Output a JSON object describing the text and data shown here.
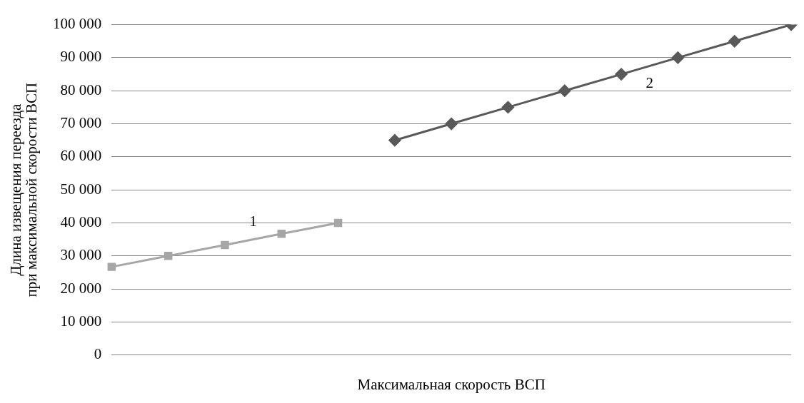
{
  "chart_data": {
    "type": "line",
    "xlabel": "Максимальная скорость ВСП",
    "ylabel": "Длина извещения переезда\nпри максимальной скорости ВСП",
    "categories": [
      null,
      null,
      null,
      null,
      null,
      null,
      null,
      null,
      null,
      null,
      null,
      null,
      null
    ],
    "series": [
      {
        "name": "1",
        "color": "#a6a6a6",
        "marker": "square",
        "values": [
          26700,
          30000,
          33300,
          36700,
          40000,
          null,
          null,
          null,
          null,
          null,
          null,
          null,
          null
        ]
      },
      {
        "name": "2",
        "color": "#595959",
        "marker": "diamond",
        "values": [
          null,
          null,
          null,
          null,
          null,
          65000,
          70000,
          75000,
          80000,
          85000,
          90000,
          95000,
          100000
        ]
      }
    ],
    "ylim": [
      0,
      100000
    ],
    "yticks": [
      {
        "value": 0,
        "label": "0"
      },
      {
        "value": 10000,
        "label": "10 000"
      },
      {
        "value": 20000,
        "label": "20 000"
      },
      {
        "value": 30000,
        "label": "30 000"
      },
      {
        "value": 40000,
        "label": "40 000"
      },
      {
        "value": 50000,
        "label": "50 000"
      },
      {
        "value": 60000,
        "label": "60 000"
      },
      {
        "value": 70000,
        "label": "70 000"
      },
      {
        "value": 80000,
        "label": "80 000"
      },
      {
        "value": 90000,
        "label": "90 000"
      },
      {
        "value": 100000,
        "label": "100 000"
      }
    ],
    "grid": "y",
    "legend": false,
    "tick_labels": "y",
    "line_style": "solid"
  }
}
